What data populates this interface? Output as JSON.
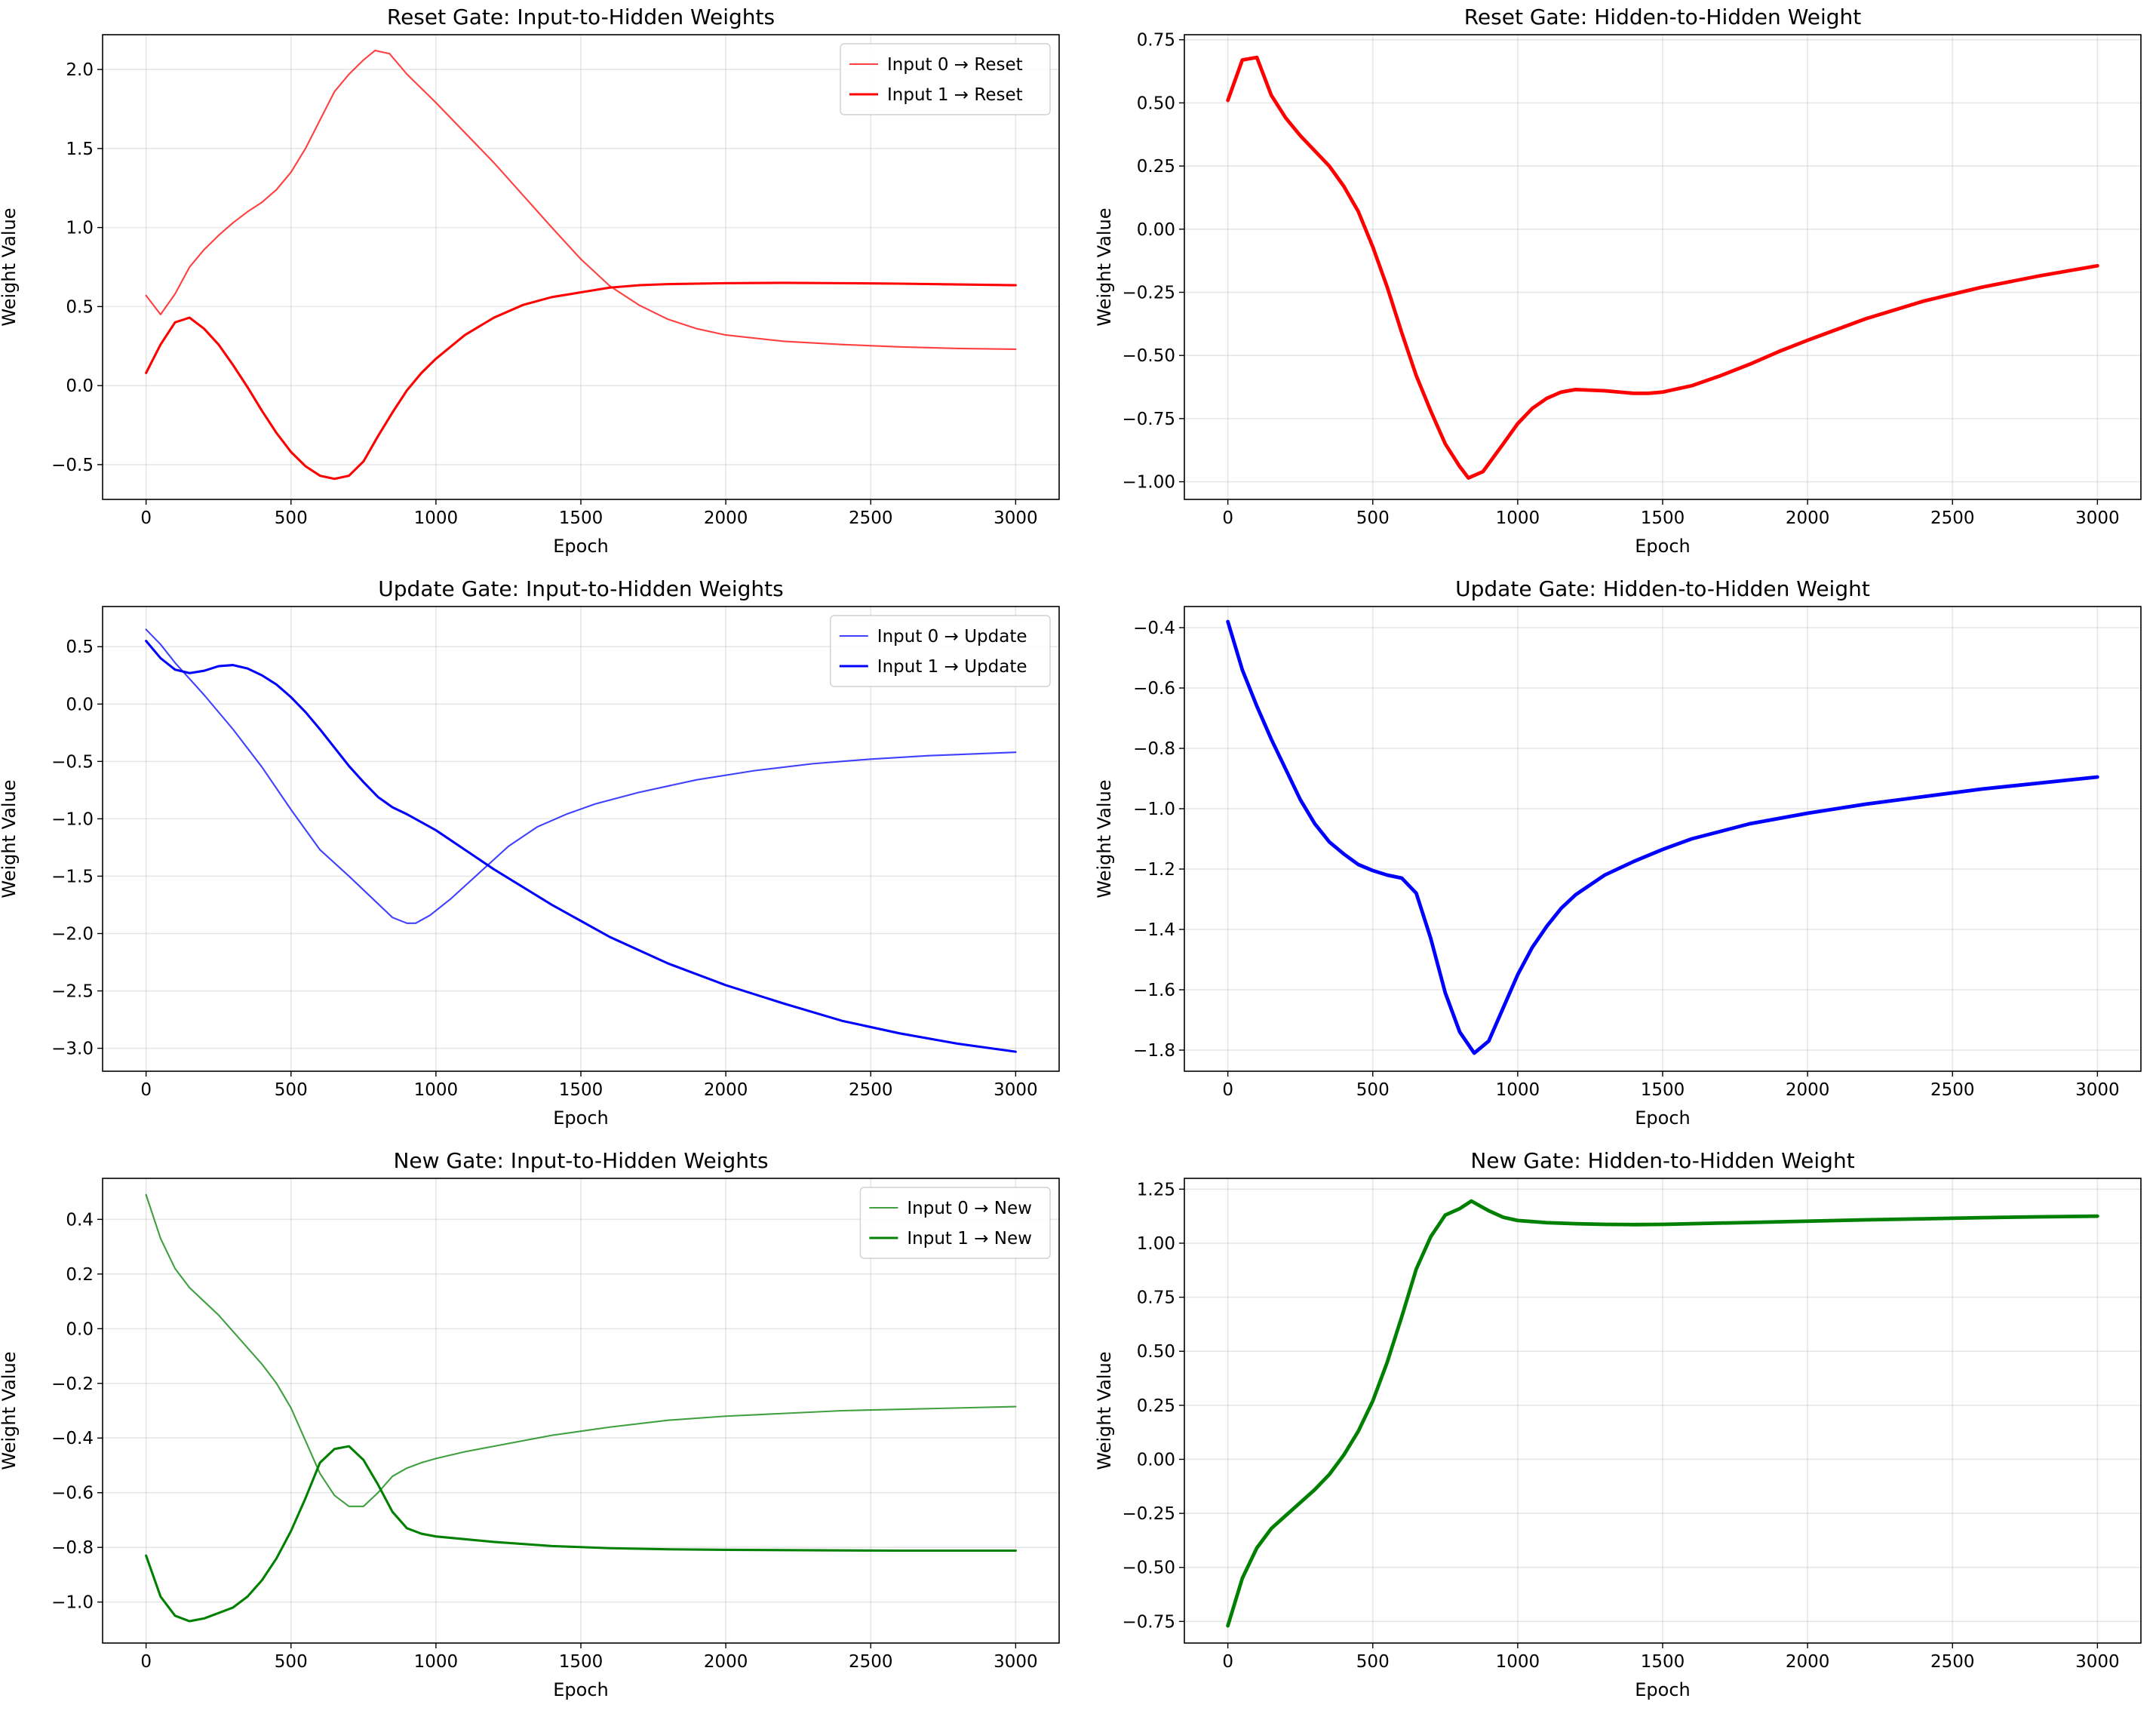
{
  "chart_data": [
    {
      "type": "line",
      "title": "Reset Gate: Input-to-Hidden Weights",
      "xlabel": "Epoch",
      "ylabel": "Weight Value",
      "xlim": [
        -150,
        3150
      ],
      "ylim": [
        -0.72,
        2.22
      ],
      "xticks": [
        0,
        500,
        1000,
        1500,
        2000,
        2500,
        3000
      ],
      "xtick_labels": [
        "0",
        "500",
        "1000",
        "1500",
        "2000",
        "2500",
        "3000"
      ],
      "yticks": [
        -0.5,
        0.0,
        0.5,
        1.0,
        1.5,
        2.0
      ],
      "ytick_labels": [
        "−0.5",
        "0.0",
        "0.5",
        "1.0",
        "1.5",
        "2.0"
      ],
      "grid": true,
      "legend": "upper right",
      "series": [
        {
          "name": "Input 0 → Reset",
          "color": "#ff0000",
          "alpha": 0.75,
          "width": 1.5,
          "x": [
            0,
            50,
            100,
            150,
            200,
            250,
            300,
            350,
            400,
            450,
            500,
            550,
            600,
            650,
            700,
            750,
            790,
            840,
            900,
            1000,
            1200,
            1400,
            1500,
            1600,
            1700,
            1800,
            1900,
            2000,
            2200,
            2400,
            2600,
            2800,
            3000
          ],
          "y": [
            0.57,
            0.45,
            0.58,
            0.75,
            0.86,
            0.95,
            1.03,
            1.1,
            1.16,
            1.24,
            1.35,
            1.5,
            1.68,
            1.86,
            1.97,
            2.06,
            2.12,
            2.1,
            1.97,
            1.79,
            1.41,
            1.0,
            0.8,
            0.63,
            0.51,
            0.42,
            0.36,
            0.32,
            0.28,
            0.26,
            0.245,
            0.235,
            0.23
          ]
        },
        {
          "name": "Input 1 → Reset",
          "color": "#ff0000",
          "alpha": 1.0,
          "width": 2.2,
          "x": [
            0,
            50,
            100,
            150,
            200,
            250,
            300,
            350,
            400,
            450,
            500,
            550,
            600,
            650,
            700,
            750,
            800,
            850,
            900,
            950,
            1000,
            1100,
            1200,
            1300,
            1400,
            1500,
            1600,
            1700,
            1800,
            2000,
            2200,
            2400,
            2600,
            2800,
            3000
          ],
          "y": [
            0.08,
            0.26,
            0.4,
            0.43,
            0.36,
            0.26,
            0.13,
            -0.01,
            -0.16,
            -0.3,
            -0.42,
            -0.51,
            -0.57,
            -0.59,
            -0.57,
            -0.48,
            -0.32,
            -0.17,
            -0.03,
            0.08,
            0.17,
            0.32,
            0.43,
            0.51,
            0.56,
            0.59,
            0.62,
            0.635,
            0.642,
            0.648,
            0.65,
            0.648,
            0.645,
            0.64,
            0.635
          ]
        }
      ]
    },
    {
      "type": "line",
      "title": "Reset Gate: Hidden-to-Hidden Weight",
      "xlabel": "Epoch",
      "ylabel": "Weight Value",
      "xlim": [
        -150,
        3150
      ],
      "ylim": [
        -1.07,
        0.77
      ],
      "xticks": [
        0,
        500,
        1000,
        1500,
        2000,
        2500,
        3000
      ],
      "xtick_labels": [
        "0",
        "500",
        "1000",
        "1500",
        "2000",
        "2500",
        "3000"
      ],
      "yticks": [
        -1.0,
        -0.75,
        -0.5,
        -0.25,
        0.0,
        0.25,
        0.5,
        0.75
      ],
      "ytick_labels": [
        "−1.00",
        "−0.75",
        "−0.50",
        "−0.25",
        "0.00",
        "0.25",
        "0.50",
        "0.75"
      ],
      "grid": true,
      "legend": "none",
      "series": [
        {
          "name": "",
          "color": "#ff0000",
          "alpha": 1.0,
          "width": 3.4,
          "x": [
            0,
            50,
            100,
            150,
            200,
            250,
            300,
            350,
            400,
            450,
            500,
            550,
            600,
            650,
            700,
            750,
            800,
            830,
            880,
            950,
            1000,
            1050,
            1100,
            1150,
            1200,
            1300,
            1400,
            1450,
            1500,
            1600,
            1700,
            1800,
            1900,
            2000,
            2200,
            2400,
            2600,
            2800,
            3000
          ],
          "y": [
            0.51,
            0.67,
            0.68,
            0.53,
            0.44,
            0.37,
            0.31,
            0.25,
            0.17,
            0.07,
            -0.07,
            -0.23,
            -0.41,
            -0.58,
            -0.72,
            -0.85,
            -0.94,
            -0.985,
            -0.96,
            -0.85,
            -0.77,
            -0.71,
            -0.67,
            -0.645,
            -0.635,
            -0.64,
            -0.65,
            -0.65,
            -0.645,
            -0.62,
            -0.58,
            -0.535,
            -0.485,
            -0.44,
            -0.355,
            -0.285,
            -0.23,
            -0.185,
            -0.145
          ]
        }
      ]
    },
    {
      "type": "line",
      "title": "Update Gate: Input-to-Hidden Weights",
      "xlabel": "Epoch",
      "ylabel": "Weight Value",
      "xlim": [
        -150,
        3150
      ],
      "ylim": [
        -3.2,
        0.85
      ],
      "xticks": [
        0,
        500,
        1000,
        1500,
        2000,
        2500,
        3000
      ],
      "xtick_labels": [
        "0",
        "500",
        "1000",
        "1500",
        "2000",
        "2500",
        "3000"
      ],
      "yticks": [
        -3.0,
        -2.5,
        -2.0,
        -1.5,
        -1.0,
        -0.5,
        0.0,
        0.5
      ],
      "ytick_labels": [
        "−3.0",
        "−2.5",
        "−2.0",
        "−1.5",
        "−1.0",
        "−0.5",
        "0.0",
        "0.5"
      ],
      "grid": true,
      "legend": "upper right",
      "series": [
        {
          "name": "Input 0 → Update",
          "color": "#0000ff",
          "alpha": 0.75,
          "width": 1.5,
          "x": [
            0,
            50,
            100,
            150,
            200,
            300,
            400,
            500,
            600,
            700,
            750,
            800,
            850,
            900,
            930,
            980,
            1050,
            1150,
            1250,
            1350,
            1450,
            1550,
            1700,
            1900,
            2100,
            2300,
            2500,
            2700,
            3000
          ],
          "y": [
            0.65,
            0.52,
            0.36,
            0.22,
            0.08,
            -0.22,
            -0.55,
            -0.92,
            -1.27,
            -1.5,
            -1.62,
            -1.74,
            -1.86,
            -1.91,
            -1.91,
            -1.84,
            -1.7,
            -1.47,
            -1.24,
            -1.07,
            -0.96,
            -0.87,
            -0.77,
            -0.66,
            -0.58,
            -0.52,
            -0.48,
            -0.45,
            -0.42
          ]
        },
        {
          "name": "Input 1 → Update",
          "color": "#0000ff",
          "alpha": 1.0,
          "width": 2.2,
          "x": [
            0,
            50,
            100,
            150,
            200,
            250,
            300,
            350,
            400,
            450,
            500,
            550,
            600,
            650,
            700,
            750,
            800,
            850,
            900,
            1000,
            1200,
            1400,
            1600,
            1800,
            2000,
            2200,
            2400,
            2600,
            2800,
            3000
          ],
          "y": [
            0.55,
            0.4,
            0.3,
            0.27,
            0.29,
            0.33,
            0.34,
            0.31,
            0.25,
            0.17,
            0.06,
            -0.07,
            -0.22,
            -0.38,
            -0.54,
            -0.68,
            -0.81,
            -0.9,
            -0.96,
            -1.1,
            -1.44,
            -1.75,
            -2.03,
            -2.26,
            -2.45,
            -2.61,
            -2.76,
            -2.87,
            -2.96,
            -3.03
          ]
        }
      ]
    },
    {
      "type": "line",
      "title": "Update Gate: Hidden-to-Hidden Weight",
      "xlabel": "Epoch",
      "ylabel": "Weight Value",
      "xlim": [
        -150,
        3150
      ],
      "ylim": [
        -1.87,
        -0.33
      ],
      "xticks": [
        0,
        500,
        1000,
        1500,
        2000,
        2500,
        3000
      ],
      "xtick_labels": [
        "0",
        "500",
        "1000",
        "1500",
        "2000",
        "2500",
        "3000"
      ],
      "yticks": [
        -1.8,
        -1.6,
        -1.4,
        -1.2,
        -1.0,
        -0.8,
        -0.6,
        -0.4
      ],
      "ytick_labels": [
        "−1.8",
        "−1.6",
        "−1.4",
        "−1.2",
        "−1.0",
        "−0.8",
        "−0.6",
        "−0.4"
      ],
      "grid": true,
      "legend": "none",
      "series": [
        {
          "name": "",
          "color": "#0000ff",
          "alpha": 1.0,
          "width": 3.4,
          "x": [
            0,
            50,
            100,
            150,
            200,
            250,
            300,
            350,
            400,
            450,
            500,
            550,
            600,
            650,
            700,
            750,
            800,
            850,
            900,
            950,
            1000,
            1050,
            1100,
            1150,
            1200,
            1300,
            1400,
            1500,
            1600,
            1800,
            2000,
            2200,
            2400,
            2600,
            2800,
            3000
          ],
          "y": [
            -0.38,
            -0.54,
            -0.66,
            -0.77,
            -0.87,
            -0.97,
            -1.05,
            -1.11,
            -1.15,
            -1.185,
            -1.205,
            -1.22,
            -1.23,
            -1.28,
            -1.43,
            -1.61,
            -1.74,
            -1.81,
            -1.77,
            -1.66,
            -1.55,
            -1.46,
            -1.39,
            -1.33,
            -1.285,
            -1.22,
            -1.175,
            -1.135,
            -1.1,
            -1.05,
            -1.015,
            -0.985,
            -0.96,
            -0.935,
            -0.915,
            -0.895
          ]
        }
      ]
    },
    {
      "type": "line",
      "title": "New Gate: Input-to-Hidden Weights",
      "xlabel": "Epoch",
      "ylabel": "Weight Value",
      "xlim": [
        -150,
        3150
      ],
      "ylim": [
        -1.15,
        0.55
      ],
      "xticks": [
        0,
        500,
        1000,
        1500,
        2000,
        2500,
        3000
      ],
      "xtick_labels": [
        "0",
        "500",
        "1000",
        "1500",
        "2000",
        "2500",
        "3000"
      ],
      "yticks": [
        -1.0,
        -0.8,
        -0.6,
        -0.4,
        -0.2,
        0.0,
        0.2,
        0.4
      ],
      "ytick_labels": [
        "−1.0",
        "−0.8",
        "−0.6",
        "−0.4",
        "−0.2",
        "0.0",
        "0.2",
        "0.4"
      ],
      "grid": true,
      "legend": "upper right",
      "series": [
        {
          "name": "Input 0 → New",
          "color": "#008000",
          "alpha": 0.75,
          "width": 1.5,
          "x": [
            0,
            50,
            100,
            150,
            200,
            250,
            300,
            350,
            400,
            450,
            500,
            550,
            600,
            650,
            700,
            750,
            800,
            850,
            900,
            950,
            1000,
            1100,
            1200,
            1400,
            1600,
            1800,
            2000,
            2200,
            2400,
            2600,
            2800,
            3000
          ],
          "y": [
            0.49,
            0.33,
            0.22,
            0.15,
            0.1,
            0.05,
            -0.01,
            -0.07,
            -0.13,
            -0.2,
            -0.29,
            -0.41,
            -0.53,
            -0.61,
            -0.65,
            -0.65,
            -0.6,
            -0.54,
            -0.51,
            -0.49,
            -0.475,
            -0.45,
            -0.43,
            -0.39,
            -0.36,
            -0.335,
            -0.32,
            -0.31,
            -0.3,
            -0.295,
            -0.29,
            -0.285
          ]
        },
        {
          "name": "Input 1 → New",
          "color": "#008000",
          "alpha": 1.0,
          "width": 2.2,
          "x": [
            0,
            50,
            100,
            150,
            200,
            250,
            300,
            350,
            400,
            450,
            500,
            550,
            600,
            650,
            700,
            750,
            800,
            850,
            900,
            950,
            1000,
            1200,
            1400,
            1600,
            1800,
            2000,
            2200,
            2400,
            2600,
            2800,
            3000
          ],
          "y": [
            -0.83,
            -0.98,
            -1.05,
            -1.07,
            -1.06,
            -1.04,
            -1.02,
            -0.98,
            -0.92,
            -0.84,
            -0.74,
            -0.62,
            -0.49,
            -0.44,
            -0.43,
            -0.48,
            -0.57,
            -0.67,
            -0.73,
            -0.75,
            -0.76,
            -0.78,
            -0.795,
            -0.803,
            -0.807,
            -0.809,
            -0.81,
            -0.811,
            -0.812,
            -0.812,
            -0.812
          ]
        }
      ]
    },
    {
      "type": "line",
      "title": "New Gate: Hidden-to-Hidden Weight",
      "xlabel": "Epoch",
      "ylabel": "Weight Value",
      "xlim": [
        -150,
        3150
      ],
      "ylim": [
        -0.85,
        1.3
      ],
      "xticks": [
        0,
        500,
        1000,
        1500,
        2000,
        2500,
        3000
      ],
      "xtick_labels": [
        "0",
        "500",
        "1000",
        "1500",
        "2000",
        "2500",
        "3000"
      ],
      "yticks": [
        -0.75,
        -0.5,
        -0.25,
        0.0,
        0.25,
        0.5,
        0.75,
        1.0,
        1.25
      ],
      "ytick_labels": [
        "−0.75",
        "−0.50",
        "−0.25",
        "0.00",
        "0.25",
        "0.50",
        "0.75",
        "1.00",
        "1.25"
      ],
      "grid": true,
      "legend": "none",
      "series": [
        {
          "name": "",
          "color": "#008000",
          "alpha": 1.0,
          "width": 3.4,
          "x": [
            0,
            50,
            100,
            150,
            200,
            250,
            300,
            350,
            400,
            450,
            500,
            550,
            600,
            650,
            700,
            750,
            800,
            840,
            900,
            950,
            1000,
            1100,
            1200,
            1300,
            1400,
            1500,
            1600,
            1800,
            2000,
            2200,
            2400,
            2600,
            2800,
            3000
          ],
          "y": [
            -0.77,
            -0.55,
            -0.41,
            -0.32,
            -0.26,
            -0.2,
            -0.14,
            -0.07,
            0.02,
            0.13,
            0.27,
            0.45,
            0.66,
            0.88,
            1.03,
            1.13,
            1.16,
            1.195,
            1.15,
            1.12,
            1.105,
            1.095,
            1.09,
            1.087,
            1.086,
            1.087,
            1.09,
            1.096,
            1.102,
            1.108,
            1.113,
            1.118,
            1.122,
            1.125
          ]
        }
      ]
    }
  ]
}
